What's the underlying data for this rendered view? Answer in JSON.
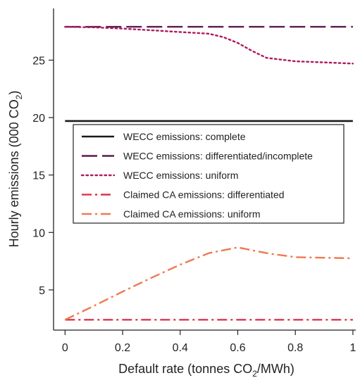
{
  "chart_data": {
    "type": "line",
    "xlabel": "Default rate (tonnes CO2/MWh)",
    "ylabel": "Hourly emissions (000 CO2)",
    "xlim": [
      -0.04,
      1.01
    ],
    "ylim": [
      1.5,
      29.5
    ],
    "x_ticks": [
      "0",
      "0.2",
      "0.4",
      "0.6",
      "0.8",
      "1"
    ],
    "y_ticks": [
      "5",
      "10",
      "15",
      "20",
      "25"
    ],
    "grid": false,
    "legend_placement": "center-left",
    "series": [
      {
        "name": "WECC emissions: complete",
        "color": "#1a1a1a",
        "dash": "solid",
        "x": [
          0,
          1
        ],
        "y": [
          19.7,
          19.7
        ]
      },
      {
        "name": "WECC emissions: differentiated/incomplete",
        "color": "#5a1a4e",
        "dash": "longdash",
        "x": [
          0,
          1
        ],
        "y": [
          27.9,
          27.9
        ]
      },
      {
        "name": "WECC emissions: uniform",
        "color": "#b0185c",
        "dash": "dotted",
        "x": [
          0,
          0.1,
          0.2,
          0.3,
          0.4,
          0.5,
          0.55,
          0.6,
          0.65,
          0.7,
          0.8,
          0.9,
          1.0
        ],
        "y": [
          27.9,
          27.85,
          27.75,
          27.6,
          27.45,
          27.3,
          27.0,
          26.5,
          25.8,
          25.2,
          24.9,
          24.8,
          24.7
        ]
      },
      {
        "name": "Claimed CA emissions: differentiated",
        "color": "#e0344a",
        "dash": "dashdot",
        "x": [
          0,
          1
        ],
        "y": [
          2.4,
          2.4
        ]
      },
      {
        "name": "Claimed CA emissions: uniform",
        "color": "#f07850",
        "dash": "dashdot",
        "x": [
          0,
          0.1,
          0.2,
          0.3,
          0.4,
          0.5,
          0.6,
          0.7,
          0.8,
          0.9,
          1.0
        ],
        "y": [
          2.4,
          3.6,
          4.85,
          6.05,
          7.2,
          8.2,
          8.7,
          8.2,
          7.85,
          7.8,
          7.75
        ]
      }
    ]
  }
}
